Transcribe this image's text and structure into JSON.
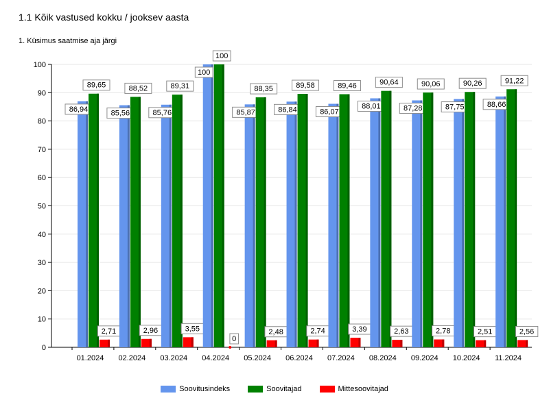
{
  "title": "1.1 Kõik vastused kokku / jooksev aasta",
  "subtitle": "1. Küsimus saatmise aja järgi",
  "chart_data": {
    "type": "bar",
    "categories": [
      "01.2024",
      "02.2024",
      "03.2024",
      "04.2024",
      "05.2024",
      "06.2024",
      "07.2024",
      "08.2024",
      "09.2024",
      "10.2024",
      "11.2024"
    ],
    "series": [
      {
        "name": "Soovitusindeks",
        "color": "#6495ED",
        "values": [
          86.94,
          85.56,
          85.76,
          100,
          85.87,
          86.84,
          86.07,
          88.01,
          87.28,
          87.75,
          88.66
        ],
        "labels": [
          "86,94",
          "85,56",
          "85,76",
          "100",
          "85,87",
          "86,84",
          "86,07",
          "88,01",
          "87,28",
          "87,75",
          "88,66"
        ]
      },
      {
        "name": "Soovitajad",
        "color": "#008000",
        "values": [
          89.65,
          88.52,
          89.31,
          100,
          88.35,
          89.58,
          89.46,
          90.64,
          90.06,
          90.26,
          91.22
        ],
        "labels": [
          "89,65",
          "88,52",
          "89,31",
          "100",
          "88,35",
          "89,58",
          "89,46",
          "90,64",
          "90,06",
          "90,26",
          "91,22"
        ]
      },
      {
        "name": "Mittesoovitajad",
        "color": "#FF0000",
        "values": [
          2.71,
          2.96,
          3.55,
          0,
          2.48,
          2.74,
          3.39,
          2.63,
          2.78,
          2.51,
          2.56
        ],
        "labels": [
          "2,71",
          "2,96",
          "3,55",
          "0",
          "2,48",
          "2,74",
          "3,39",
          "2,63",
          "2,78",
          "2,51",
          "2,56"
        ]
      }
    ],
    "ylim": [
      0,
      100
    ],
    "yticks": [
      "0",
      "10",
      "20",
      "30",
      "40",
      "50",
      "60",
      "70",
      "80",
      "90",
      "100"
    ],
    "grid": true,
    "legend_position": "bottom"
  }
}
